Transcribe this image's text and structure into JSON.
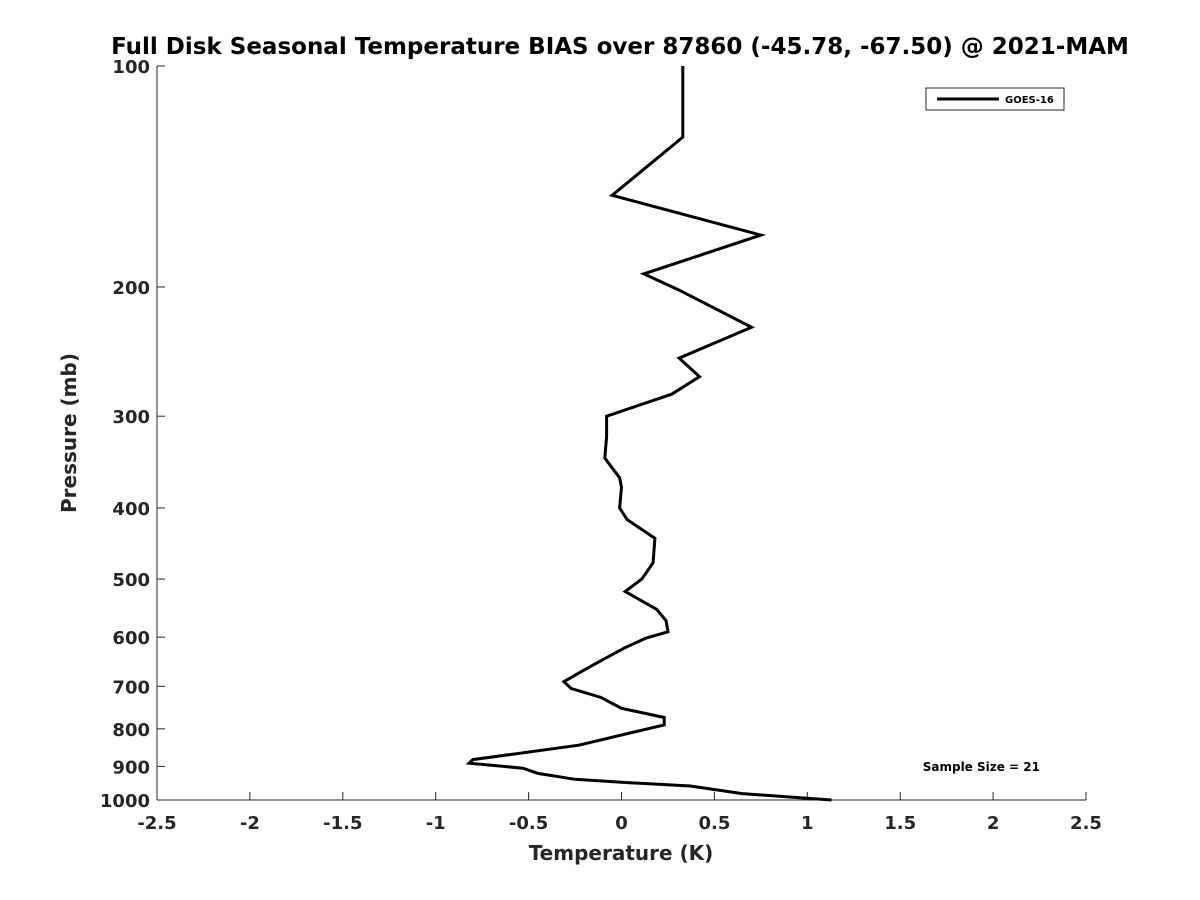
{
  "chart_data": {
    "type": "line",
    "title": "Full Disk Seasonal Temperature BIAS over 87860 (-45.78, -67.50) @ 2021-MAM",
    "xlabel": "Temperature (K)",
    "ylabel": "Pressure (mb)",
    "xlim": [
      -2.5,
      2.5
    ],
    "ylim": [
      100,
      1000
    ],
    "y_scale": "log",
    "y_reversed": true,
    "grid": false,
    "x_ticks": [
      -2.5,
      -2,
      -1.5,
      -1,
      -0.5,
      0,
      0.5,
      1,
      1.5,
      2,
      2.5
    ],
    "x_tick_labels": [
      "-2.5",
      "-2",
      "-1.5",
      "-1",
      "-0.5",
      "0",
      "0.5",
      "1",
      "1.5",
      "2",
      "2.5"
    ],
    "y_ticks": [
      100,
      200,
      300,
      400,
      500,
      600,
      700,
      800,
      900,
      1000
    ],
    "y_tick_labels": [
      "100",
      "200",
      "300",
      "400",
      "500",
      "600",
      "700",
      "800",
      "900",
      "1000"
    ],
    "legend_position": "top-right",
    "series": [
      {
        "name": "GOES-16",
        "color": "#000000",
        "points": [
          {
            "x": 0.33,
            "p": 100
          },
          {
            "x": 0.33,
            "p": 125
          },
          {
            "x": -0.05,
            "p": 150
          },
          {
            "x": 0.75,
            "p": 170
          },
          {
            "x": 0.12,
            "p": 192
          },
          {
            "x": 0.31,
            "p": 202
          },
          {
            "x": 0.7,
            "p": 227
          },
          {
            "x": 0.31,
            "p": 250
          },
          {
            "x": 0.42,
            "p": 265
          },
          {
            "x": 0.27,
            "p": 280
          },
          {
            "x": -0.08,
            "p": 300
          },
          {
            "x": -0.08,
            "p": 320
          },
          {
            "x": -0.09,
            "p": 342
          },
          {
            "x": -0.01,
            "p": 364
          },
          {
            "x": 0.0,
            "p": 375
          },
          {
            "x": -0.01,
            "p": 400
          },
          {
            "x": 0.03,
            "p": 415
          },
          {
            "x": 0.18,
            "p": 440
          },
          {
            "x": 0.17,
            "p": 475
          },
          {
            "x": 0.11,
            "p": 500
          },
          {
            "x": 0.02,
            "p": 520
          },
          {
            "x": 0.19,
            "p": 550
          },
          {
            "x": 0.24,
            "p": 570
          },
          {
            "x": 0.25,
            "p": 590
          },
          {
            "x": 0.13,
            "p": 602
          },
          {
            "x": 0.02,
            "p": 620
          },
          {
            "x": -0.13,
            "p": 650
          },
          {
            "x": -0.21,
            "p": 667
          },
          {
            "x": -0.31,
            "p": 690
          },
          {
            "x": -0.27,
            "p": 705
          },
          {
            "x": -0.11,
            "p": 725
          },
          {
            "x": 0.0,
            "p": 750
          },
          {
            "x": 0.23,
            "p": 772
          },
          {
            "x": 0.23,
            "p": 790
          },
          {
            "x": -0.23,
            "p": 842
          },
          {
            "x": -0.8,
            "p": 881
          },
          {
            "x": -0.82,
            "p": 891
          },
          {
            "x": -0.53,
            "p": 905
          },
          {
            "x": -0.45,
            "p": 920
          },
          {
            "x": -0.25,
            "p": 937
          },
          {
            "x": 0.0,
            "p": 946
          },
          {
            "x": 0.37,
            "p": 957
          },
          {
            "x": 0.65,
            "p": 980
          },
          {
            "x": 1.13,
            "p": 1000
          }
        ]
      }
    ],
    "annotations": [
      {
        "text": "Sample Size = 21",
        "position": "bottom-right"
      }
    ]
  }
}
